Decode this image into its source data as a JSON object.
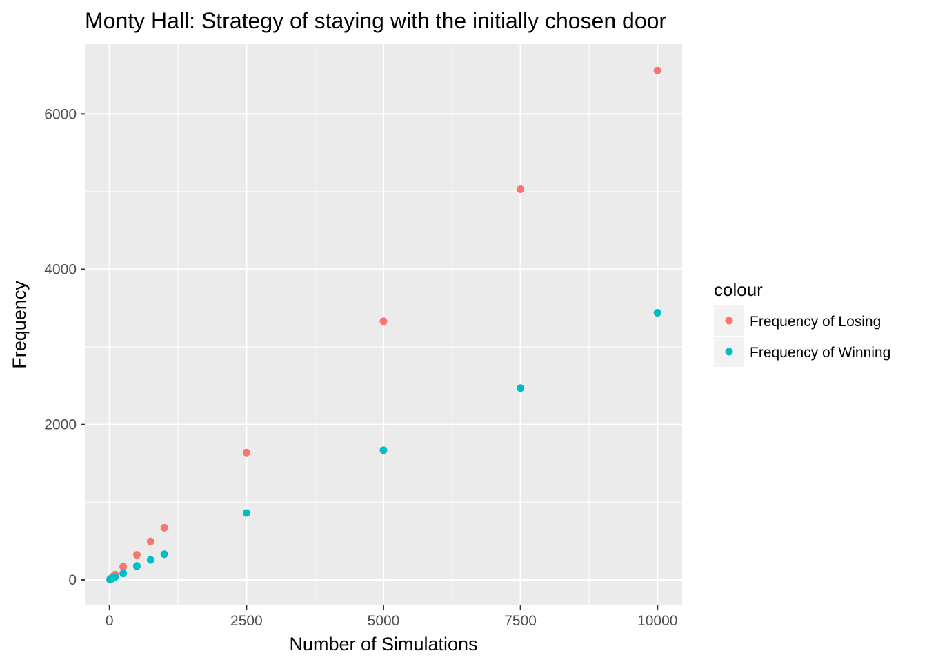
{
  "chart_data": {
    "type": "scatter",
    "title": "Monty Hall: Strategy of staying with the initially chosen door",
    "xlabel": "Number of Simulations",
    "ylabel": "Frequency",
    "xlim": [
      -450,
      10450
    ],
    "ylim": [
      -330,
      6900
    ],
    "x_ticks": [
      0,
      2500,
      5000,
      7500,
      10000
    ],
    "y_ticks": [
      0,
      2000,
      4000,
      6000
    ],
    "grid": true,
    "legend": {
      "title": "colour",
      "position": "right"
    },
    "series": [
      {
        "name": "Frequency of Losing",
        "color": "#F8766D",
        "points": [
          {
            "x": 10,
            "y": 7
          },
          {
            "x": 25,
            "y": 16
          },
          {
            "x": 50,
            "y": 33
          },
          {
            "x": 75,
            "y": 48
          },
          {
            "x": 100,
            "y": 66
          },
          {
            "x": 250,
            "y": 168
          },
          {
            "x": 500,
            "y": 322
          },
          {
            "x": 750,
            "y": 494
          },
          {
            "x": 1000,
            "y": 670
          },
          {
            "x": 2500,
            "y": 1640
          },
          {
            "x": 5000,
            "y": 3330
          },
          {
            "x": 7500,
            "y": 5030
          },
          {
            "x": 10000,
            "y": 6560
          }
        ]
      },
      {
        "name": "Frequency of Winning",
        "color": "#00BFC4",
        "points": [
          {
            "x": 10,
            "y": 3
          },
          {
            "x": 25,
            "y": 9
          },
          {
            "x": 50,
            "y": 17
          },
          {
            "x": 75,
            "y": 27
          },
          {
            "x": 100,
            "y": 34
          },
          {
            "x": 250,
            "y": 82
          },
          {
            "x": 500,
            "y": 178
          },
          {
            "x": 750,
            "y": 256
          },
          {
            "x": 1000,
            "y": 330
          },
          {
            "x": 2500,
            "y": 860
          },
          {
            "x": 5000,
            "y": 1670
          },
          {
            "x": 7500,
            "y": 2470
          },
          {
            "x": 10000,
            "y": 3440
          }
        ]
      }
    ]
  }
}
